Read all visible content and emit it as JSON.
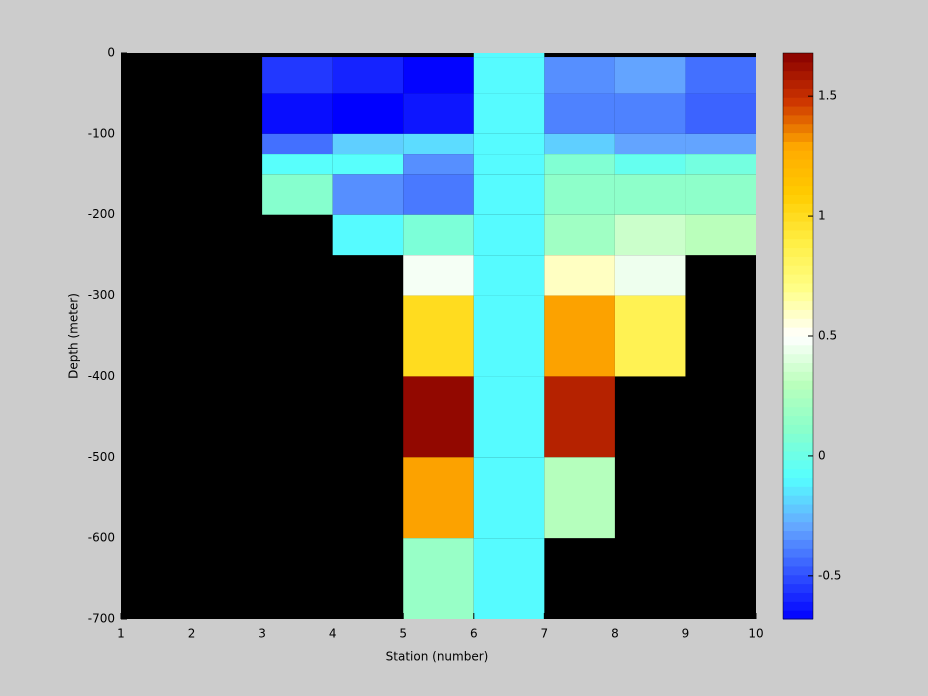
{
  "chart_data": {
    "type": "heatmap",
    "xlabel": "Station (number)",
    "ylabel": "Depth (meter)",
    "x_edges": [
      1,
      2,
      3,
      4,
      5,
      6,
      7,
      8,
      9,
      10
    ],
    "y_edges": [
      0,
      -5,
      -50,
      -100,
      -125,
      -150,
      -200,
      -250,
      -300,
      -400,
      -500,
      -600,
      -700
    ],
    "values": [
      [
        null,
        null,
        null,
        null,
        null,
        -0.1,
        null,
        null,
        null
      ],
      [
        null,
        null,
        -0.55,
        -0.6,
        -0.67,
        -0.1,
        -0.35,
        -0.3,
        -0.42
      ],
      [
        null,
        null,
        -0.65,
        -0.68,
        -0.63,
        -0.1,
        -0.38,
        -0.38,
        -0.45
      ],
      [
        null,
        null,
        -0.42,
        -0.2,
        -0.17,
        -0.1,
        -0.2,
        -0.3,
        -0.3
      ],
      [
        null,
        null,
        -0.08,
        -0.08,
        -0.35,
        -0.1,
        0.08,
        -0.03,
        0.03
      ],
      [
        null,
        null,
        0.1,
        -0.35,
        -0.4,
        -0.1,
        0.13,
        0.13,
        0.13
      ],
      [
        null,
        null,
        null,
        -0.1,
        0.06,
        -0.1,
        0.2,
        0.35,
        0.3
      ],
      [
        null,
        null,
        null,
        null,
        0.47,
        -0.1,
        0.6,
        0.45,
        null
      ],
      [
        null,
        null,
        null,
        null,
        1.0,
        -0.1,
        1.3,
        0.85,
        null
      ],
      [
        null,
        null,
        null,
        null,
        1.65,
        -0.1,
        1.55,
        null,
        null
      ],
      [
        null,
        null,
        null,
        null,
        1.3,
        -0.1,
        0.28,
        null,
        null
      ],
      [
        null,
        null,
        null,
        null,
        0.17,
        -0.1,
        null,
        null,
        null
      ]
    ],
    "xlim": [
      1,
      10
    ],
    "xticks": [
      1,
      2,
      3,
      4,
      5,
      6,
      7,
      8,
      9,
      10
    ],
    "ylim": [
      -700,
      0
    ],
    "yticks": [
      0,
      -100,
      -200,
      -300,
      -400,
      -500,
      -600,
      -700
    ],
    "clim": [
      -0.68,
      1.68
    ],
    "cticks": [
      -0.5,
      0,
      0.5,
      1,
      1.5
    ],
    "colormap": [
      "#0000ff",
      "#3355ff",
      "#66aaff",
      "#55ffff",
      "#88ffcc",
      "#bbffbb",
      "#ffffff",
      "#ffff88",
      "#ffee44",
      "#ffcc00",
      "#ffaa00",
      "#cc3300",
      "#880000"
    ],
    "nan_color": "#000000",
    "background": "#cccccc"
  }
}
